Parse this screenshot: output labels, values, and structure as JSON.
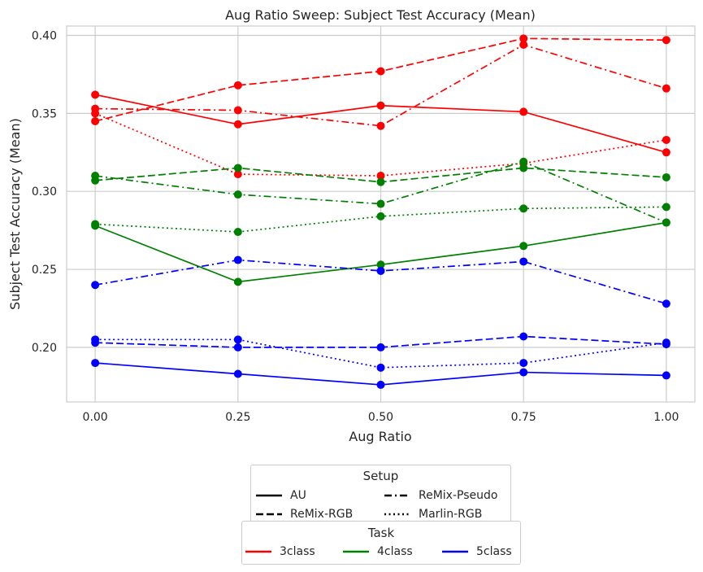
{
  "chart_data": {
    "type": "line",
    "title": "Aug Ratio Sweep: Subject Test Accuracy (Mean)",
    "xlabel": "Aug Ratio",
    "ylabel": "Subject Test Accuracy (Mean)",
    "x": [
      0.0,
      0.25,
      0.5,
      0.75,
      1.0
    ],
    "x_tick_labels": [
      "0.00",
      "0.25",
      "0.50",
      "0.75",
      "1.00"
    ],
    "y_ticks": [
      0.2,
      0.25,
      0.3,
      0.35,
      0.4
    ],
    "y_tick_labels": [
      "0.20",
      "0.25",
      "0.30",
      "0.35",
      "0.40"
    ],
    "xlim": [
      -0.05,
      1.05
    ],
    "ylim": [
      0.165,
      0.406
    ],
    "grid": true,
    "series": [
      {
        "task": "3class",
        "setup": "AU",
        "values": [
          0.362,
          0.343,
          0.355,
          0.351,
          0.325
        ]
      },
      {
        "task": "3class",
        "setup": "ReMix-RGB",
        "values": [
          0.345,
          0.368,
          0.377,
          0.398,
          0.397
        ]
      },
      {
        "task": "3class",
        "setup": "ReMix-Pseudo",
        "values": [
          0.353,
          0.352,
          0.342,
          0.394,
          0.366
        ]
      },
      {
        "task": "3class",
        "setup": "Marlin-RGB",
        "values": [
          0.35,
          0.311,
          0.31,
          0.318,
          0.333
        ]
      },
      {
        "task": "4class",
        "setup": "AU",
        "values": [
          0.278,
          0.242,
          0.253,
          0.265,
          0.28
        ]
      },
      {
        "task": "4class",
        "setup": "ReMix-RGB",
        "values": [
          0.307,
          0.315,
          0.306,
          0.315,
          0.309
        ]
      },
      {
        "task": "4class",
        "setup": "ReMix-Pseudo",
        "values": [
          0.31,
          0.298,
          0.292,
          0.319,
          0.28
        ]
      },
      {
        "task": "4class",
        "setup": "Marlin-RGB",
        "values": [
          0.279,
          0.274,
          0.284,
          0.289,
          0.29
        ]
      },
      {
        "task": "5class",
        "setup": "AU",
        "values": [
          0.19,
          0.183,
          0.176,
          0.184,
          0.182
        ]
      },
      {
        "task": "5class",
        "setup": "ReMix-RGB",
        "values": [
          0.203,
          0.2,
          0.2,
          0.207,
          0.202
        ]
      },
      {
        "task": "5class",
        "setup": "ReMix-Pseudo",
        "values": [
          0.24,
          0.256,
          0.249,
          0.255,
          0.228
        ]
      },
      {
        "task": "5class",
        "setup": "Marlin-RGB",
        "values": [
          0.205,
          0.205,
          0.187,
          0.19,
          0.203
        ]
      }
    ],
    "task_colors": {
      "3class": "#ff0000",
      "4class": "#008000",
      "5class": "#0000ff"
    },
    "setup_styles": {
      "AU": "solid",
      "ReMix-RGB": "dashed",
      "ReMix-Pseudo": "dashdot",
      "Marlin-RGB": "dotted"
    },
    "legend_setup": {
      "title": "Setup",
      "entries": [
        "AU",
        "ReMix-RGB",
        "ReMix-Pseudo",
        "Marlin-RGB"
      ]
    },
    "legend_task": {
      "title": "Task",
      "entries": [
        "3class",
        "4class",
        "5class"
      ]
    },
    "legend_placement": "bottom-center"
  }
}
